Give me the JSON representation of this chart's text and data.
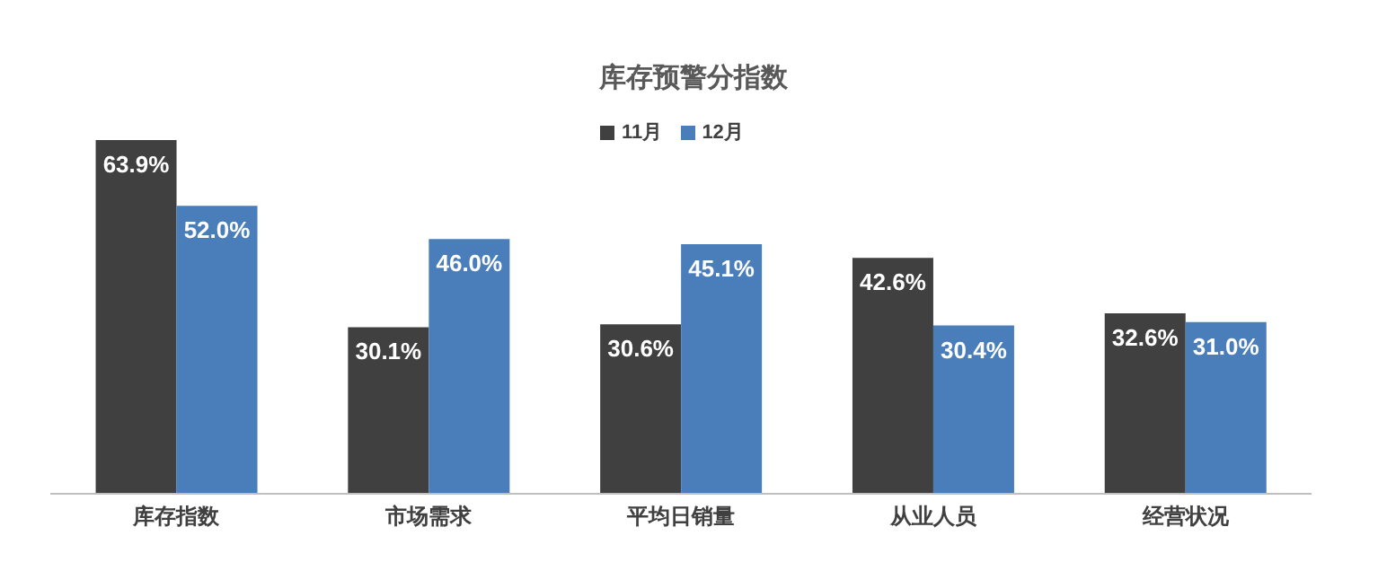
{
  "chart_data": {
    "type": "bar",
    "title": "库存预警分指数",
    "categories": [
      "库存指数",
      "市场需求",
      "平均日销量",
      "从业人员",
      "经营状况"
    ],
    "legend": "top",
    "grid": false,
    "series": [
      {
        "name": "11月",
        "color": "#404040",
        "values": [
          63.9,
          30.1,
          30.6,
          42.6,
          32.6
        ],
        "value_labels": [
          "63.9%",
          "30.1%",
          "30.6%",
          "42.6%",
          "32.6%"
        ]
      },
      {
        "name": "12月",
        "color": "#4a7ebb",
        "values": [
          52.0,
          46.0,
          45.1,
          30.4,
          31.0
        ],
        "value_labels": [
          "52.0%",
          "46.0%",
          "45.1%",
          "30.4%",
          "31.0%"
        ]
      }
    ]
  }
}
